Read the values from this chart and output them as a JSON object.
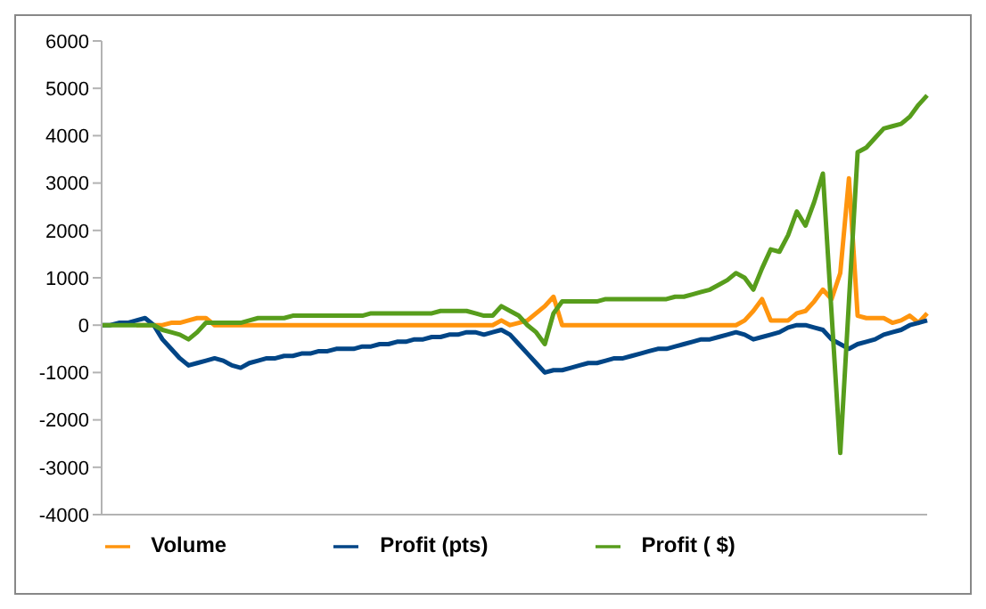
{
  "chart_data": {
    "type": "line",
    "categories": [
      null,
      null,
      null,
      null,
      null,
      null,
      null,
      null,
      null,
      null,
      null,
      null,
      null,
      null,
      null,
      null,
      null,
      null,
      null,
      null,
      null,
      null,
      null,
      null,
      null,
      null,
      null,
      null,
      null,
      null,
      null,
      null,
      null,
      null,
      null,
      null,
      null,
      null,
      null,
      null,
      null,
      null,
      null,
      null,
      null,
      null,
      null,
      null,
      null,
      null,
      null,
      null,
      null,
      null,
      null,
      null,
      null,
      null,
      null,
      null,
      null,
      null,
      null,
      null,
      null,
      null,
      null,
      null,
      null,
      null,
      null,
      null,
      null,
      null,
      null,
      null,
      null,
      null,
      null,
      null,
      null,
      null,
      null,
      null,
      null,
      null,
      null,
      null,
      null,
      null,
      null,
      null,
      null,
      null,
      null,
      null
    ],
    "series": [
      {
        "name": "Volume",
        "color": "#ff950e",
        "values": [
          null,
          null,
          null,
          null,
          0,
          0,
          0,
          0,
          50,
          50,
          100,
          150,
          150,
          0,
          0,
          0,
          0,
          0,
          0,
          0,
          0,
          0,
          0,
          0,
          0,
          0,
          0,
          0,
          0,
          0,
          0,
          0,
          0,
          0,
          0,
          0,
          0,
          0,
          0,
          0,
          0,
          0,
          0,
          0,
          0,
          0,
          100,
          0,
          50,
          100,
          250,
          400,
          600,
          0,
          0,
          0,
          0,
          0,
          0,
          0,
          0,
          0,
          0,
          0,
          0,
          0,
          0,
          0,
          0,
          0,
          0,
          0,
          0,
          0,
          100,
          300,
          550,
          100,
          100,
          100,
          250,
          300,
          500,
          750,
          550,
          1100,
          3100,
          200,
          150,
          150,
          150,
          50,
          100,
          200,
          50,
          250
        ]
      },
      {
        "name": "Profit (pts)",
        "color": "#004586",
        "values": [
          0,
          0,
          50,
          50,
          100,
          150,
          0,
          -300,
          -500,
          -700,
          -850,
          -800,
          -750,
          -700,
          -750,
          -850,
          -900,
          -800,
          -750,
          -700,
          -700,
          -650,
          -650,
          -600,
          -600,
          -550,
          -550,
          -500,
          -500,
          -500,
          -450,
          -450,
          -400,
          -400,
          -350,
          -350,
          -300,
          -300,
          -250,
          -250,
          -200,
          -200,
          -150,
          -150,
          -200,
          -150,
          -100,
          -200,
          -400,
          -600,
          -800,
          -1000,
          -950,
          -950,
          -900,
          -850,
          -800,
          -800,
          -750,
          -700,
          -700,
          -650,
          -600,
          -550,
          -500,
          -500,
          -450,
          -400,
          -350,
          -300,
          -300,
          -250,
          -200,
          -150,
          -200,
          -300,
          -250,
          -200,
          -150,
          -50,
          0,
          0,
          -50,
          -100,
          -300,
          -400,
          -500,
          -400,
          -350,
          -300,
          -200,
          -150,
          -100,
          0,
          50,
          100
        ]
      },
      {
        "name": "Profit ( $)",
        "color": "#579d1c",
        "values": [
          0,
          0,
          0,
          0,
          0,
          0,
          0,
          -100,
          -150,
          -200,
          -300,
          -150,
          50,
          50,
          50,
          50,
          50,
          100,
          150,
          150,
          150,
          150,
          200,
          200,
          200,
          200,
          200,
          200,
          200,
          200,
          200,
          250,
          250,
          250,
          250,
          250,
          250,
          250,
          250,
          300,
          300,
          300,
          300,
          250,
          200,
          200,
          400,
          300,
          200,
          0,
          -150,
          -400,
          250,
          500,
          500,
          500,
          500,
          500,
          550,
          550,
          550,
          550,
          550,
          550,
          550,
          550,
          600,
          600,
          650,
          700,
          750,
          850,
          950,
          1100,
          1000,
          750,
          1200,
          1600,
          1550,
          1900,
          2400,
          2100,
          2600,
          3200,
          250,
          -2700,
          500,
          3650,
          3750,
          3950,
          4150,
          4200,
          4250,
          4400,
          4650,
          4850
        ]
      }
    ],
    "ylim": [
      -4000,
      6000
    ],
    "yticks": [
      -4000,
      -3000,
      -2000,
      -1000,
      0,
      1000,
      2000,
      3000,
      4000,
      5000,
      6000
    ],
    "tick_labels": "y",
    "legend": "bottom"
  }
}
